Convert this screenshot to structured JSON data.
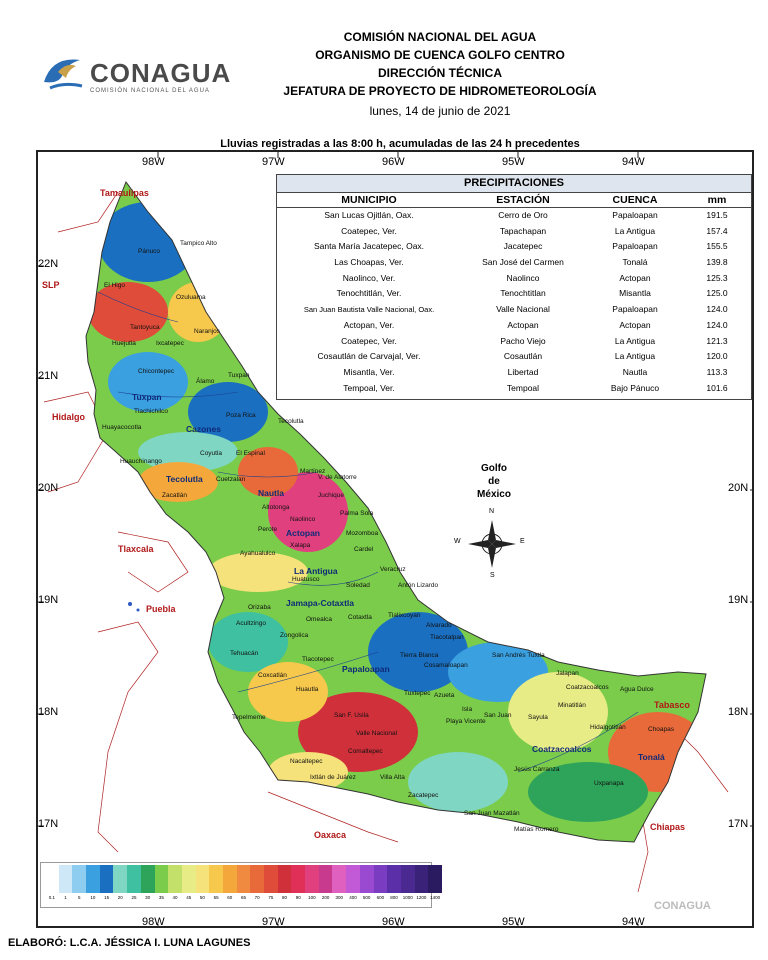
{
  "header": {
    "logo_name": "CONAGUA",
    "logo_sub": "COMISIÓN NACIONAL DEL AGUA",
    "line1": "COMISIÓN NACIONAL DEL AGUA",
    "line2": "ORGANISMO DE CUENCA GOLFO CENTRO",
    "line3": "DIRECCIÓN TÉCNICA",
    "line4": "JEFATURA DE PROYECTO DE HIDROMETEOROLOGÍA",
    "date": "lunes, 14 de junio de 2021"
  },
  "subtitle": "Lluvias registradas a las 8:00 h, acumuladas de las 24 h precedentes",
  "axes": {
    "lon_labels": [
      "98W",
      "97W",
      "96W",
      "95W",
      "94W"
    ],
    "lat_labels": [
      "22N",
      "21N",
      "20N",
      "19N",
      "18N",
      "17N"
    ],
    "lat_labels_right": [
      "20N",
      "19N",
      "18N",
      "17N"
    ]
  },
  "table": {
    "title": "PRECIPITACIONES",
    "headers": [
      "MUNICIPIO",
      "ESTACIÓN",
      "CUENCA",
      "mm"
    ],
    "rows": [
      [
        "San Lucas Ojitlán, Oax.",
        "Cerro de Oro",
        "Papaloapan",
        "191.5"
      ],
      [
        "Coatepec, Ver.",
        "Tapachapan",
        "La Antigua",
        "157.4"
      ],
      [
        "Santa María Jacatepec, Oax.",
        "Jacatepec",
        "Papaloapan",
        "155.5"
      ],
      [
        "Las Choapas, Ver.",
        "San José del Carmen",
        "Tonalá",
        "139.8"
      ],
      [
        "Naolinco, Ver.",
        "Naolinco",
        "Actopan",
        "125.3"
      ],
      [
        "Tenochtitlán, Ver.",
        "Tenochtitlan",
        "Misantla",
        "125.0"
      ],
      [
        "San Juan Bautista Valle Nacional, Oax.",
        "Valle Nacional",
        "Papaloapan",
        "124.0"
      ],
      [
        "Actopan, Ver.",
        "Actopan",
        "Actopan",
        "124.0"
      ],
      [
        "Coatepec, Ver.",
        "Pacho Viejo",
        "La Antigua",
        "121.3"
      ],
      [
        "Cosautlán de Carvajal, Ver.",
        "Cosautlán",
        "La Antigua",
        "120.0"
      ],
      [
        "Misantla, Ver.",
        "Libertad",
        "Nautla",
        "113.3"
      ],
      [
        "Tempoal, Ver.",
        "Tempoal",
        "Bajo Pánuco",
        "101.6"
      ]
    ]
  },
  "states": [
    "Tamaulipas",
    "SLP",
    "Hidalgo",
    "Tlaxcala",
    "Puebla",
    "Oaxaca",
    "Chiapas",
    "Tabasco"
  ],
  "basins": [
    "Tuxpan",
    "Cazones",
    "Tecolutla",
    "Nautla",
    "Actopan",
    "La Antigua",
    "Jamapa-Cotaxtla",
    "Papaloapan",
    "Coatzacoalcos",
    "Tonalá"
  ],
  "places": [
    "Pánuco",
    "Tampico Alto",
    "El Higo",
    "Ozuluama",
    "Tantoyuca",
    "Naranjos",
    "Huejutla",
    "Ixcatepec",
    "Chicontepec",
    "Álamo",
    "Tuxpan",
    "Tlachichilco",
    "Poza Rica",
    "Tecolutla",
    "Huayacocotla",
    "Coyutla",
    "Huauchinango",
    "El Espinal",
    "Cuetzalan",
    "Martínez",
    "V. de Alatorre",
    "Zacatlán",
    "Altotonga",
    "Juchique",
    "Palma Sola",
    "Naolinco",
    "Perote",
    "Xalapa",
    "Mozomboa",
    "Cardel",
    "Ayahualulco",
    "Huatusco",
    "Veracruz",
    "Soledad",
    "Antón Lizardo",
    "Orizaba",
    "Omealca",
    "Cotaxtla",
    "Tlalixcoyan",
    "Alvarado",
    "Acultzingo",
    "Zongolica",
    "Tlacotalpan",
    "Tehuacán",
    "Tlacotepec",
    "Tierra Blanca",
    "Cosamaloapan",
    "San Andrés Tuxtla",
    "Coxcatlán",
    "Huautla",
    "Tuxtepec",
    "Jalapan",
    "Coatzacoalcos",
    "Agua Dulce",
    "Minatitlán",
    "Azueta",
    "Isla",
    "Tepelmeme",
    "San F. Usila",
    "Playa Vicente",
    "San Juan",
    "Sayula",
    "Hidalgotitlán",
    "Choapas",
    "Valle Nacional",
    "Comaltepec",
    "Nacaltepec",
    "Jesús Carranza",
    "Uxpanapa",
    "Ixtlán de Juárez",
    "Villa Alta",
    "Zacatepec",
    "San Juan Mazatlán",
    "Matías Romero"
  ],
  "gulf_label": [
    "Golfo",
    "de",
    "México"
  ],
  "compass": {
    "n": "N",
    "s": "S",
    "e": "E",
    "w": "W"
  },
  "legend": {
    "labels": [
      "0.1",
      "1",
      "5",
      "10",
      "15",
      "20",
      "25",
      "30",
      "35",
      "40",
      "45",
      "50",
      "55",
      "60",
      "65",
      "70",
      "75",
      "80",
      "90",
      "100",
      "200",
      "300",
      "400",
      "500",
      "600",
      "800",
      "1000",
      "1200",
      "1400"
    ],
    "colors": [
      "#ffffff",
      "#cfe8f8",
      "#8fcdf0",
      "#3aa0e0",
      "#1a6fc0",
      "#7fd6c2",
      "#3fc0a0",
      "#2ea35a",
      "#7acc4a",
      "#c2e06a",
      "#e8ec86",
      "#f6e27a",
      "#f6c84c",
      "#f4a83c",
      "#f08a40",
      "#e86a3a",
      "#e04c3a",
      "#d0303a",
      "#e03058",
      "#e0407e",
      "#c83a8e",
      "#e060c0",
      "#c25ad8",
      "#9a4ad0",
      "#7a3cc0",
      "#5a2fa8",
      "#4a2a90",
      "#3a2278",
      "#2a1a60"
    ]
  },
  "footer": "ELABORÓ: L.C.A. JÉSSICA I. LUNA LAGUNES",
  "watermark": "CONAGUA"
}
